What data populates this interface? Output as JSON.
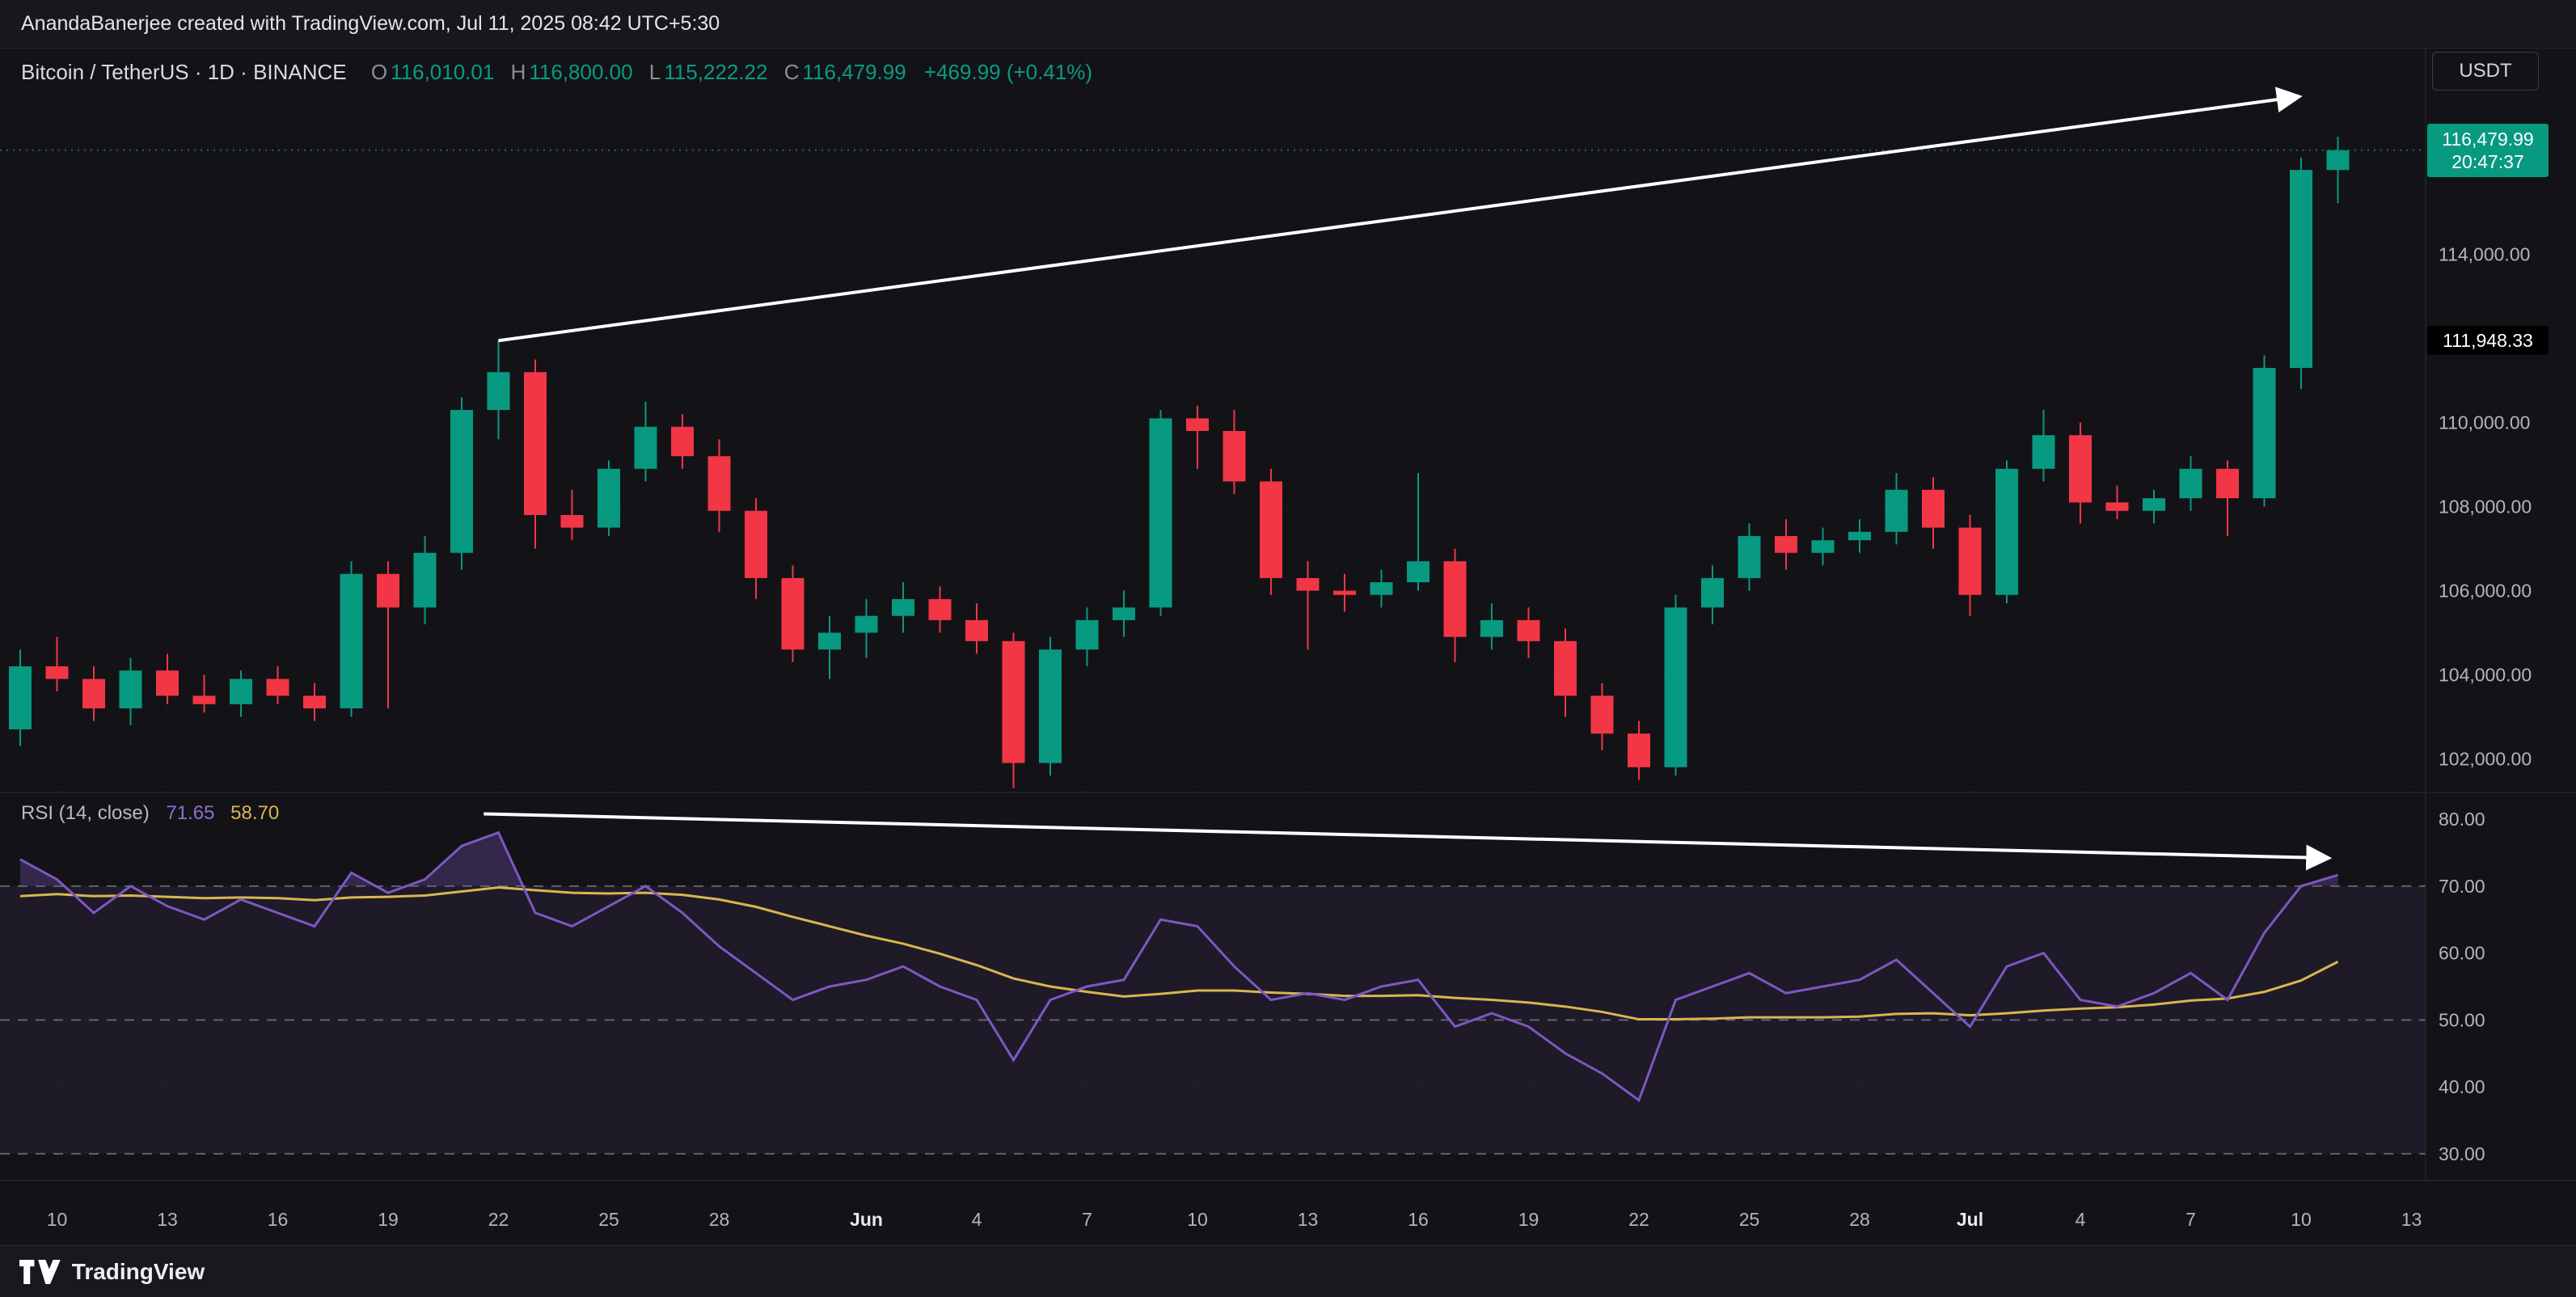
{
  "top_bar": {
    "text": "AnandaBanerjee created with TradingView.com, Jul 11, 2025 08:42 UTC+5:30"
  },
  "header": {
    "title_line": "Bitcoin / TetherUS · 1D · BINANCE",
    "ohlc": {
      "open_label": "O",
      "open": "116,010.01",
      "high_label": "H",
      "high": "116,800.00",
      "low_label": "L",
      "low": "115,222.22",
      "close_label": "C",
      "close": "116,479.99",
      "change": "+469.99 (+0.41%)"
    },
    "currency_button": "USDT"
  },
  "price_axis": {
    "last_price_badge": {
      "price": "116,479.99",
      "countdown": "20:47:37"
    },
    "trendline_badge": "111,948.33",
    "labels": [
      {
        "text": "114,000.00",
        "value": 114000
      },
      {
        "text": "110,000.00",
        "value": 110000
      },
      {
        "text": "108,000.00",
        "value": 108000
      },
      {
        "text": "106,000.00",
        "value": 106000
      },
      {
        "text": "104,000.00",
        "value": 104000
      },
      {
        "text": "102,000.00",
        "value": 102000
      }
    ]
  },
  "rsi_pane": {
    "title": "RSI (14, close)",
    "value": "71.65",
    "ma_value": "58.70",
    "labels": [
      {
        "text": "80.00",
        "value": 80
      },
      {
        "text": "70.00",
        "value": 70
      },
      {
        "text": "60.00",
        "value": 60
      },
      {
        "text": "50.00",
        "value": 50
      },
      {
        "text": "40.00",
        "value": 40
      },
      {
        "text": "30.00",
        "value": 30
      }
    ],
    "levels": [
      70,
      50,
      30
    ]
  },
  "time_axis": {
    "ticks": [
      {
        "label": "10",
        "index": 1,
        "major": false
      },
      {
        "label": "13",
        "index": 4,
        "major": false
      },
      {
        "label": "16",
        "index": 7,
        "major": false
      },
      {
        "label": "19",
        "index": 10,
        "major": false
      },
      {
        "label": "22",
        "index": 13,
        "major": false
      },
      {
        "label": "25",
        "index": 16,
        "major": false
      },
      {
        "label": "28",
        "index": 19,
        "major": false
      },
      {
        "label": "Jun",
        "index": 23,
        "major": true
      },
      {
        "label": "4",
        "index": 26,
        "major": false
      },
      {
        "label": "7",
        "index": 29,
        "major": false
      },
      {
        "label": "10",
        "index": 32,
        "major": false
      },
      {
        "label": "13",
        "index": 35,
        "major": false
      },
      {
        "label": "16",
        "index": 38,
        "major": false
      },
      {
        "label": "19",
        "index": 41,
        "major": false
      },
      {
        "label": "22",
        "index": 44,
        "major": false
      },
      {
        "label": "25",
        "index": 47,
        "major": false
      },
      {
        "label": "28",
        "index": 50,
        "major": false
      },
      {
        "label": "Jul",
        "index": 53,
        "major": true
      },
      {
        "label": "4",
        "index": 56,
        "major": false
      },
      {
        "label": "7",
        "index": 59,
        "major": false
      },
      {
        "label": "10",
        "index": 62,
        "major": false
      },
      {
        "label": "13",
        "index": 65,
        "major": false
      }
    ]
  },
  "footer": {
    "brand": "TradingView"
  },
  "colors": {
    "up": "#089981",
    "down": "#f23645",
    "rsi": "#7e57c2",
    "rsi_ma": "#d8b64f",
    "trendline": "#ffffff",
    "badge": "#089981"
  },
  "chart_data": {
    "type": "candlestick+rsi",
    "title": "Bitcoin / TetherUS 1D BINANCE",
    "price_range": [
      101200,
      118900
    ],
    "rsi_range": [
      26,
      84
    ],
    "grid": true,
    "last_price": 116479.99,
    "trendline_badge_price": 111948.33,
    "candles": [
      [
        "May 9",
        102700,
        104600,
        102300,
        104200
      ],
      [
        "May 10",
        104200,
        104900,
        103600,
        103900
      ],
      [
        "May 11",
        103900,
        104200,
        102900,
        103200
      ],
      [
        "May 12",
        103200,
        104400,
        102800,
        104100
      ],
      [
        "May 13",
        104100,
        104500,
        103300,
        103500
      ],
      [
        "May 14",
        103500,
        104000,
        103100,
        103300
      ],
      [
        "May 15",
        103300,
        104100,
        103000,
        103900
      ],
      [
        "May 16",
        103900,
        104200,
        103300,
        103500
      ],
      [
        "May 17",
        103500,
        103800,
        102900,
        103200
      ],
      [
        "May 18",
        103200,
        106700,
        103000,
        106400
      ],
      [
        "May 19",
        106400,
        106700,
        103200,
        105600
      ],
      [
        "May 20",
        105600,
        107300,
        105200,
        106900
      ],
      [
        "May 21",
        106900,
        110600,
        106500,
        110300
      ],
      [
        "May 22",
        110300,
        111950,
        109600,
        111200
      ],
      [
        "May 23",
        111200,
        111500,
        107000,
        107800
      ],
      [
        "May 24",
        107800,
        108400,
        107200,
        107500
      ],
      [
        "May 25",
        107500,
        109100,
        107300,
        108900
      ],
      [
        "May 26",
        108900,
        110500,
        108600,
        109900
      ],
      [
        "May 27",
        109900,
        110200,
        108900,
        109200
      ],
      [
        "May 28",
        109200,
        109600,
        107400,
        107900
      ],
      [
        "May 29",
        107900,
        108200,
        105800,
        106300
      ],
      [
        "May 30",
        106300,
        106600,
        104300,
        104600
      ],
      [
        "May 31",
        104600,
        105400,
        103900,
        105000
      ],
      [
        "Jun 1",
        105000,
        105800,
        104400,
        105400
      ],
      [
        "Jun 2",
        105400,
        106200,
        105000,
        105800
      ],
      [
        "Jun 3",
        105800,
        106100,
        105000,
        105300
      ],
      [
        "Jun 4",
        105300,
        105700,
        104500,
        104800
      ],
      [
        "Jun 5",
        104800,
        105000,
        101300,
        101900
      ],
      [
        "Jun 6",
        101900,
        104900,
        101600,
        104600
      ],
      [
        "Jun 7",
        104600,
        105600,
        104200,
        105300
      ],
      [
        "Jun 8",
        105300,
        106000,
        104900,
        105600
      ],
      [
        "Jun 9",
        105600,
        110300,
        105400,
        110100
      ],
      [
        "Jun 10",
        110100,
        110400,
        108900,
        109800
      ],
      [
        "Jun 11",
        109800,
        110300,
        108300,
        108600
      ],
      [
        "Jun 12",
        108600,
        108900,
        105900,
        106300
      ],
      [
        "Jun 13",
        106300,
        106700,
        104600,
        106000
      ],
      [
        "Jun 14",
        106000,
        106400,
        105500,
        105900
      ],
      [
        "Jun 15",
        105900,
        106500,
        105600,
        106200
      ],
      [
        "Jun 16",
        106200,
        108800,
        106000,
        106700
      ],
      [
        "Jun 17",
        106700,
        107000,
        104300,
        104900
      ],
      [
        "Jun 18",
        104900,
        105700,
        104600,
        105300
      ],
      [
        "Jun 19",
        105300,
        105600,
        104400,
        104800
      ],
      [
        "Jun 20",
        104800,
        105100,
        103000,
        103500
      ],
      [
        "Jun 21",
        103500,
        103800,
        102200,
        102600
      ],
      [
        "Jun 22",
        102600,
        102900,
        101500,
        101800
      ],
      [
        "Jun 23",
        101800,
        105900,
        101600,
        105600
      ],
      [
        "Jun 24",
        105600,
        106600,
        105200,
        106300
      ],
      [
        "Jun 25",
        106300,
        107600,
        106000,
        107300
      ],
      [
        "Jun 26",
        107300,
        107700,
        106500,
        106900
      ],
      [
        "Jun 27",
        106900,
        107500,
        106600,
        107200
      ],
      [
        "Jun 28",
        107200,
        107700,
        106900,
        107400
      ],
      [
        "Jun 29",
        107400,
        108800,
        107100,
        108400
      ],
      [
        "Jun 30",
        108400,
        108700,
        107000,
        107500
      ],
      [
        "Jul 1",
        107500,
        107800,
        105400,
        105900
      ],
      [
        "Jul 2",
        105900,
        109100,
        105700,
        108900
      ],
      [
        "Jul 3",
        108900,
        110300,
        108600,
        109700
      ],
      [
        "Jul 4",
        109700,
        110000,
        107600,
        108100
      ],
      [
        "Jul 5",
        108100,
        108500,
        107700,
        107900
      ],
      [
        "Jul 6",
        107900,
        108400,
        107600,
        108200
      ],
      [
        "Jul 7",
        108200,
        109200,
        107900,
        108900
      ],
      [
        "Jul 8",
        108900,
        109100,
        107300,
        108200
      ],
      [
        "Jul 9",
        108200,
        111600,
        108000,
        111300
      ],
      [
        "Jul 10",
        111300,
        116300,
        110800,
        116010
      ],
      [
        "Jul 11",
        116010.01,
        116800,
        115222.22,
        116479.99
      ]
    ],
    "rsi": [
      74,
      71,
      66,
      70,
      67,
      65,
      68,
      66,
      64,
      72,
      69,
      71,
      76,
      78,
      66,
      64,
      67,
      70,
      66,
      61,
      57,
      53,
      55,
      56,
      58,
      55,
      53,
      44,
      53,
      55,
      56,
      65,
      64,
      58,
      53,
      54,
      53,
      55,
      56,
      49,
      51,
      49,
      45,
      42,
      38,
      53,
      55,
      57,
      54,
      55,
      56,
      59,
      54,
      49,
      58,
      60,
      53,
      52,
      54,
      57,
      53,
      63,
      70,
      71.65
    ],
    "rsi_ma": [
      68.5,
      68.8,
      68.5,
      68.6,
      68.4,
      68.2,
      68.3,
      68.2,
      67.9,
      68.3,
      68.4,
      68.6,
      69.2,
      69.8,
      69.4,
      69.0,
      68.9,
      69.0,
      68.7,
      68.0,
      66.9,
      65.4,
      64.0,
      62.6,
      61.4,
      59.9,
      58.2,
      56.2,
      55.0,
      54.2,
      53.5,
      53.9,
      54.4,
      54.4,
      54.1,
      53.9,
      53.6,
      53.6,
      53.7,
      53.3,
      53.0,
      52.6,
      52.0,
      51.2,
      50.1,
      50.1,
      50.2,
      50.4,
      50.4,
      50.4,
      50.5,
      50.9,
      51.0,
      50.7,
      51.0,
      51.4,
      51.7,
      51.9,
      52.3,
      52.9,
      53.2,
      54.2,
      55.9,
      58.7
    ],
    "trendlines": [
      {
        "pane": "price",
        "from_index": 13,
        "from_value": 111950,
        "to_index": 61.9,
        "to_value": 117750,
        "arrow": true
      },
      {
        "pane": "rsi",
        "from_index": 12.6,
        "from_value": 80.8,
        "to_index": 62.7,
        "to_value": 74.2,
        "arrow": true
      }
    ]
  }
}
